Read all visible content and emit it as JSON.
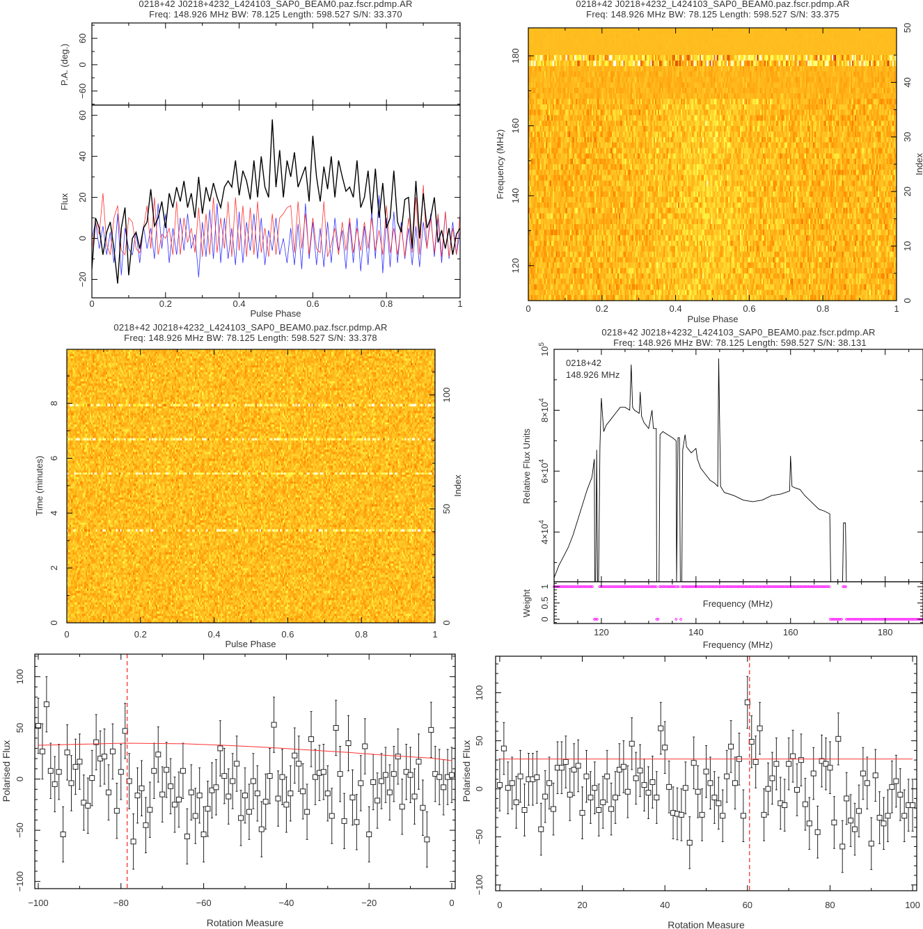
{
  "titles": {
    "profile": {
      "line1": "0218+42 J0218+4232_L424103_SAP0_BEAM0.paz.fscr.pdmp.AR",
      "line2": "Freq: 148.926 MHz BW: 78.125 Length: 598.527 S/N: 33.370"
    },
    "freq_phase": {
      "line1": "0218+42 J0218+4232_L424103_SAP0_BEAM0.paz.fscr.pdmp.AR",
      "line2": "Freq: 148.926 MHz BW: 78.125 Length: 598.527 S/N: 33.375"
    },
    "time_phase": {
      "line1": "0218+42 J0218+4232_L424103_SAP0_BEAM0.paz.fscr.pdmp.AR",
      "line2": "Freq: 148.926 MHz BW: 78.125 Length: 598.527 S/N: 33.378"
    },
    "bandpass": {
      "line1": "0218+42 J0218+4232_L424103_SAP0_BEAM0.paz.fscr.pdmp.AR",
      "line2": "Freq: 148.926 MHz BW: 78.125 Length: 598.527 S/N: 38.131"
    }
  },
  "chart_data": [
    {
      "id": "profile",
      "type": "line",
      "xlabel": "Pulse Phase",
      "ylabel": "Flux",
      "pa_ylabel": "P.A. (deg.)",
      "xlim": [
        0,
        1
      ],
      "ylim": [
        -29,
        65
      ],
      "pa_ylim": [
        -92,
        95
      ],
      "xticks": [
        {
          "v": 0,
          "l": "0"
        },
        {
          "v": 0.2,
          "l": "0.2"
        },
        {
          "v": 0.4,
          "l": "0.4"
        },
        {
          "v": 0.6,
          "l": "0.6"
        },
        {
          "v": 0.8,
          "l": "0.8"
        },
        {
          "v": 1,
          "l": "1"
        }
      ],
      "yticks": [
        {
          "v": -20,
          "l": "−20"
        },
        {
          "v": 0,
          "l": "0"
        },
        {
          "v": 20,
          "l": "20"
        },
        {
          "v": 40,
          "l": "40"
        },
        {
          "v": 60,
          "l": "60"
        }
      ],
      "pa_yticks": [
        {
          "v": -60,
          "l": "−60"
        },
        {
          "v": 0,
          "l": "0"
        },
        {
          "v": 60,
          "l": "60"
        }
      ],
      "series": [
        {
          "color": "#000000",
          "values": [
            -15,
            10,
            5,
            -8,
            3,
            8,
            -5,
            -22,
            5,
            15,
            -18,
            0,
            3,
            -5,
            5,
            8,
            24,
            6,
            10,
            18,
            5,
            22,
            15,
            25,
            18,
            28,
            15,
            22,
            10,
            30,
            12,
            25,
            18,
            27,
            20,
            15,
            25,
            28,
            25,
            38,
            21,
            33,
            28,
            19,
            38,
            20,
            40,
            25,
            20,
            58,
            25,
            43,
            20,
            38,
            30,
            42,
            25,
            30,
            35,
            18,
            50,
            30,
            18,
            35,
            24,
            40,
            20,
            38,
            30,
            23,
            25,
            20,
            38,
            15,
            20,
            33,
            12,
            34,
            10,
            27,
            5,
            10,
            33,
            8,
            3,
            19,
            20,
            -5,
            28,
            0,
            22,
            5,
            10,
            20,
            -2,
            4,
            -5,
            5,
            -8,
            2,
            5
          ]
        },
        {
          "color": "#ff3030",
          "values": [
            -5,
            8,
            2,
            22,
            -3,
            -8,
            10,
            16,
            -6,
            -8,
            10,
            8,
            -5,
            -7,
            5,
            16,
            -5,
            20,
            -8,
            2,
            0,
            5,
            -8,
            18,
            -8,
            10,
            -2,
            5,
            -7,
            15,
            -9,
            12,
            -8,
            20,
            -7,
            10,
            -5,
            18,
            -9,
            20,
            -6,
            16,
            -9,
            15,
            -8,
            18,
            -7,
            5,
            -9,
            12,
            -8,
            10,
            12,
            15,
            16,
            -7,
            18,
            -5,
            12,
            -8,
            10,
            -5,
            -7,
            18,
            -9,
            -3,
            5,
            -8,
            8,
            -6,
            10,
            -7,
            5,
            -6,
            8,
            -5,
            10,
            -6,
            4,
            -8,
            16,
            -7,
            5,
            -8,
            6,
            -9,
            10,
            -7,
            20,
            -8,
            26,
            -5,
            10,
            -7,
            12,
            -9,
            13,
            -9,
            5,
            -8,
            12
          ]
        },
        {
          "color": "#3030ff",
          "values": [
            0,
            8,
            -5,
            6,
            -8,
            3,
            -12,
            12,
            -18,
            5,
            -5,
            -8,
            3,
            -12,
            6,
            -5,
            5,
            -10,
            17,
            -5,
            12,
            -12,
            5,
            -8,
            10,
            -6,
            12,
            -5,
            2,
            -19,
            8,
            -9,
            14,
            -10,
            17,
            -12,
            10,
            -10,
            5,
            -13,
            13,
            -12,
            8,
            -6,
            12,
            -10,
            10,
            -13,
            4,
            -6,
            10,
            -8,
            0,
            -12,
            5,
            -13,
            7,
            -15,
            17,
            -10,
            8,
            -13,
            5,
            -14,
            8,
            -12,
            10,
            -6,
            4,
            -15,
            8,
            -12,
            10,
            -16,
            6,
            -13,
            14,
            -10,
            21,
            -17,
            10,
            -14,
            13,
            -12,
            8,
            -10,
            5,
            -13,
            6,
            -14,
            8,
            -5,
            12,
            -9,
            10,
            -12,
            13,
            -10,
            8,
            -8,
            4
          ]
        }
      ]
    },
    {
      "id": "freq_phase",
      "type": "heatmap",
      "xlabel": "Pulse Phase",
      "ylabel": "Frequency (MHz)",
      "y2label": "Index",
      "xlim": [
        0,
        1
      ],
      "ylim": [
        110,
        188
      ],
      "y2lim": [
        0,
        50
      ],
      "colormap": "heat",
      "xticks": [
        {
          "v": 0,
          "l": "0"
        },
        {
          "v": 0.2,
          "l": "0.2"
        },
        {
          "v": 0.4,
          "l": "0.4"
        },
        {
          "v": 0.6,
          "l": "0.6"
        },
        {
          "v": 0.8,
          "l": "0.8"
        },
        {
          "v": 1,
          "l": "1"
        }
      ],
      "yticks": [
        {
          "v": 120,
          "l": "120"
        },
        {
          "v": 140,
          "l": "140"
        },
        {
          "v": 160,
          "l": "160"
        },
        {
          "v": 180,
          "l": "180"
        }
      ],
      "y2ticks": [
        {
          "v": 0,
          "l": "0"
        },
        {
          "v": 10,
          "l": "10"
        },
        {
          "v": 20,
          "l": "20"
        },
        {
          "v": 30,
          "l": "30"
        },
        {
          "v": 40,
          "l": "40"
        },
        {
          "v": 50,
          "l": "50"
        }
      ]
    },
    {
      "id": "time_phase",
      "type": "heatmap",
      "xlabel": "Pulse Phase",
      "ylabel": "Time (minutes)",
      "y2label": "Index",
      "xlim": [
        0,
        1
      ],
      "ylim": [
        0,
        9.97
      ],
      "y2lim": [
        0,
        120
      ],
      "colormap": "heat",
      "xticks": [
        {
          "v": 0,
          "l": "0"
        },
        {
          "v": 0.2,
          "l": "0.2"
        },
        {
          "v": 0.4,
          "l": "0.4"
        },
        {
          "v": 0.6,
          "l": "0.6"
        },
        {
          "v": 0.8,
          "l": "0.8"
        },
        {
          "v": 1,
          "l": "1"
        }
      ],
      "yticks": [
        {
          "v": 0,
          "l": "0"
        },
        {
          "v": 2,
          "l": "2"
        },
        {
          "v": 4,
          "l": "4"
        },
        {
          "v": 6,
          "l": "6"
        },
        {
          "v": 8,
          "l": "8"
        }
      ],
      "y2ticks": [
        {
          "v": 0,
          "l": "0"
        },
        {
          "v": 50,
          "l": "50"
        },
        {
          "v": 100,
          "l": "100"
        }
      ]
    },
    {
      "id": "bandpass",
      "type": "line",
      "xlabel": "Frequency (MHz)",
      "ylabel": "Relative Flux Units",
      "weight_xlabel": "Frequency (MHz)",
      "weight_ylabel": "Weight",
      "annotation": [
        "0218+42",
        "148.926 MHz"
      ],
      "xlim": [
        110,
        188
      ],
      "ylim": [
        23700,
        100000
      ],
      "weight_ylim": [
        -0.13,
        1.15
      ],
      "xticks": [
        {
          "v": 120,
          "l": "120"
        },
        {
          "v": 140,
          "l": "140"
        },
        {
          "v": 160,
          "l": "160"
        },
        {
          "v": 180,
          "l": "180"
        }
      ],
      "yticks": [
        {
          "v": 40000,
          "l": "4×10",
          "e": "4"
        },
        {
          "v": 60000,
          "l": "6×10",
          "e": "4"
        },
        {
          "v": 80000,
          "l": "8×10",
          "e": "4"
        },
        {
          "v": 100000,
          "l": "10",
          "e": "5"
        }
      ],
      "weight_yticks": [
        {
          "v": 0,
          "l": "0"
        },
        {
          "v": 0.5,
          "l": "0.5"
        },
        {
          "v": 1,
          "l": "1"
        }
      ],
      "line_color": "#000000",
      "weight_color": "#ff00ff",
      "x": [
        110,
        111,
        112,
        113,
        114,
        115,
        116,
        117,
        118,
        118.5,
        118.6,
        118.8,
        119,
        119.2,
        119.4,
        119.7,
        120,
        120.5,
        121,
        122,
        123,
        124,
        125,
        126,
        126.3,
        126.6,
        127,
        128,
        128.2,
        128.5,
        129,
        130,
        130.7,
        131,
        131.6,
        131.7,
        132.2,
        132.4,
        133,
        134,
        135,
        135.8,
        135.9,
        136.2,
        136.5,
        136.7,
        137,
        137.2,
        137.7,
        138,
        139,
        140,
        140.3,
        141,
        142,
        143,
        144,
        144.6,
        144.8,
        145.2,
        146,
        148,
        150,
        152,
        154,
        156,
        158,
        159.8,
        160,
        160.3,
        161,
        162,
        163,
        164,
        165,
        166,
        167,
        168.3,
        168.5,
        171,
        171.2,
        171.6,
        171.8
      ],
      "values": [
        25000,
        29000,
        32000,
        35000,
        39000,
        44000,
        49000,
        54000,
        58000,
        64000,
        23700,
        23700,
        67000,
        23700,
        23700,
        68000,
        84000,
        73000,
        75000,
        77000,
        79000,
        81000,
        81000,
        80000,
        95000,
        81000,
        80000,
        79000,
        86000,
        78000,
        76000,
        74000,
        80000,
        74000,
        74000,
        23700,
        23700,
        72000,
        73000,
        72000,
        71000,
        70000,
        23700,
        71000,
        71000,
        23700,
        23700,
        67000,
        72000,
        68000,
        66000,
        67500,
        64000,
        61000,
        59000,
        57000,
        56000,
        55000,
        97000,
        55000,
        53000,
        52000,
        50500,
        50000,
        50500,
        52000,
        52500,
        53500,
        65000,
        55000,
        54500,
        54000,
        52000,
        50500,
        49000,
        47500,
        47000,
        46000,
        23700,
        23700,
        43000,
        43000,
        23700
      ],
      "weights": [
        {
          "from": 110,
          "to": 118.3,
          "w": 1
        },
        {
          "from": 118.5,
          "to": 119.3,
          "w": 0
        },
        {
          "from": 119.6,
          "to": 131.6,
          "w": 1
        },
        {
          "from": 131.7,
          "to": 132.2,
          "w": 0
        },
        {
          "from": 132.3,
          "to": 135.6,
          "w": 1
        },
        {
          "from": 135.8,
          "to": 135.8,
          "w": 0
        },
        {
          "from": 136.0,
          "to": 136.5,
          "w": 1
        },
        {
          "from": 136.8,
          "to": 136.8,
          "w": 0
        },
        {
          "from": 137.0,
          "to": 168.3,
          "w": 1
        },
        {
          "from": 168.4,
          "to": 171.0,
          "w": 0
        },
        {
          "from": 171.1,
          "to": 171.7,
          "w": 1
        },
        {
          "from": 171.8,
          "to": 188,
          "w": 0
        }
      ]
    },
    {
      "id": "rm_negative",
      "type": "scatter",
      "xlabel": "Rotation Measure",
      "ylabel": "Polarised Flux",
      "xlim": [
        -100.84,
        0.84
      ],
      "ylim": [
        -107,
        122
      ],
      "xticks": [
        {
          "v": -100,
          "l": "−100"
        },
        {
          "v": -80,
          "l": "−80"
        },
        {
          "v": -60,
          "l": "−60"
        },
        {
          "v": -40,
          "l": "−40"
        },
        {
          "v": -20,
          "l": "−20"
        },
        {
          "v": 0,
          "l": "0"
        }
      ],
      "yticks": [
        {
          "v": -100,
          "l": "−100"
        },
        {
          "v": -50,
          "l": "−50"
        },
        {
          "v": 0,
          "l": "0"
        },
        {
          "v": 50,
          "l": "50"
        },
        {
          "v": 100,
          "l": "100"
        }
      ],
      "x_start": -100,
      "x_step": 1,
      "values": [
        52,
        27,
        73,
        8,
        -5,
        7,
        -54,
        26,
        -4,
        12,
        17,
        -23,
        -26,
        1,
        36,
        20,
        22,
        -13,
        27,
        -31,
        7,
        47,
        -2,
        -61,
        -16,
        -9,
        -45,
        -30,
        8,
        24,
        -15,
        9,
        -7,
        -25,
        -20,
        8,
        -56,
        -13,
        -36,
        -16,
        -54,
        -29,
        -11,
        -8,
        30,
        3,
        -17,
        -2,
        15,
        -38,
        -16,
        -32,
        -2,
        -14,
        -49,
        -22,
        3,
        53,
        -19,
        2,
        -25,
        -14,
        23,
        15,
        -12,
        -32,
        39,
        2,
        6,
        7,
        -14,
        -36,
        50,
        5,
        -41,
        35,
        -18,
        -42,
        -4,
        32,
        -54,
        -3,
        -21,
        -2,
        4,
        -13,
        5,
        22,
        -27,
        7,
        4,
        -17,
        17,
        -28,
        -59,
        48,
        5,
        2,
        -8,
        2,
        4
      ],
      "error": 27,
      "fit": [
        [
          -100,
          33
        ],
        [
          -90,
          34
        ],
        [
          -79,
          35
        ],
        [
          -65,
          34.5
        ],
        [
          -55,
          33
        ],
        [
          -45,
          31
        ],
        [
          -35,
          28.5
        ],
        [
          -25,
          26
        ],
        [
          -15,
          23
        ],
        [
          -5,
          20.5
        ],
        [
          0,
          18
        ]
      ],
      "fit_color": "#ff3030",
      "marker_rm": -78.5
    },
    {
      "id": "rm_positive",
      "type": "scatter",
      "xlabel": "Rotation Measure",
      "ylabel": "Polarised Flux",
      "xlim": [
        -1.0,
        101.0
      ],
      "ylim": [
        -106,
        138
      ],
      "xticks": [
        {
          "v": 0,
          "l": "0"
        },
        {
          "v": 20,
          "l": "20"
        },
        {
          "v": 40,
          "l": "40"
        },
        {
          "v": 60,
          "l": "60"
        },
        {
          "v": 80,
          "l": "80"
        },
        {
          "v": 100,
          "l": "100"
        }
      ],
      "yticks": [
        {
          "v": -100,
          "l": "−100"
        },
        {
          "v": -50,
          "l": "−50"
        },
        {
          "v": 0,
          "l": "0"
        },
        {
          "v": 50,
          "l": "50"
        },
        {
          "v": 100,
          "l": "100"
        }
      ],
      "x_start": 0,
      "x_step": 1,
      "values": [
        4,
        42,
        1,
        6,
        -14,
        13,
        -22,
        10,
        10,
        12,
        -42,
        -8,
        6,
        -21,
        22,
        22,
        28,
        -6,
        20,
        24,
        -25,
        13,
        -9,
        1,
        -22,
        -14,
        13,
        -21,
        -9,
        20,
        23,
        -3,
        47,
        11,
        19,
        4,
        -4,
        7,
        -9,
        63,
        43,
        2,
        -25,
        -26,
        -27,
        1,
        -56,
        27,
        -3,
        -27,
        18,
        6,
        -9,
        -15,
        -28,
        13,
        44,
        6,
        31,
        -28,
        90,
        49,
        28,
        63,
        -27,
        0,
        11,
        26,
        -15,
        -17,
        26,
        34,
        -1,
        30,
        -16,
        -36,
        16,
        -45,
        29,
        26,
        22,
        -35,
        52,
        -60,
        -10,
        -33,
        -42,
        -23,
        16,
        6,
        -57,
        14,
        -30,
        -36,
        -28,
        2,
        8,
        -6,
        -28,
        -17,
        -17
      ],
      "error": 27,
      "fit": [
        [
          0,
          31
        ],
        [
          100,
          31
        ]
      ],
      "fit_color": "#ff3030",
      "marker_rm": 60.5
    }
  ]
}
